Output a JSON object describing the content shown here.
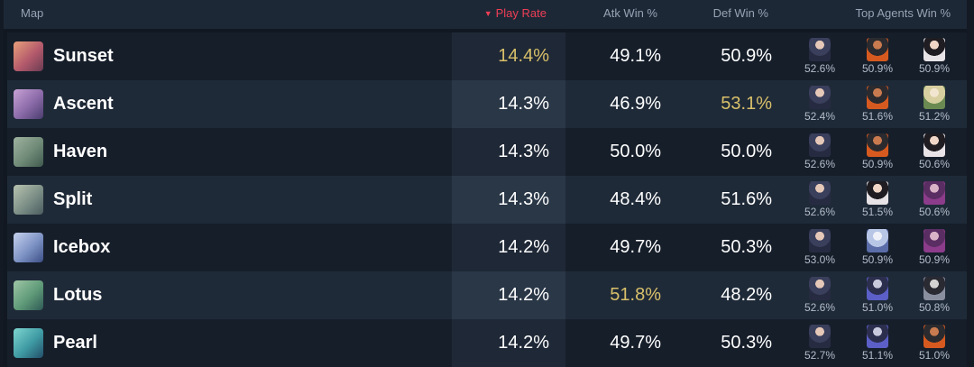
{
  "header": {
    "map_label": "Map",
    "play_rate_label": "Play Rate",
    "sort_arrow": "▼",
    "atk_label": "Atk Win %",
    "def_label": "Def Win %",
    "agents_label": "Top Agents Win %"
  },
  "colors": {
    "highlight": "#d8c06a",
    "sort_accent": "#ef3e56"
  },
  "rows": [
    {
      "map": "Sunset",
      "play_rate": "14.4%",
      "atk": "49.1%",
      "def": "50.9%",
      "highlight": "play_rate",
      "agents": [
        "52.6%",
        "50.9%",
        "50.9%"
      ]
    },
    {
      "map": "Ascent",
      "play_rate": "14.3%",
      "atk": "46.9%",
      "def": "53.1%",
      "highlight": "def",
      "agents": [
        "52.4%",
        "51.6%",
        "51.2%"
      ]
    },
    {
      "map": "Haven",
      "play_rate": "14.3%",
      "atk": "50.0%",
      "def": "50.0%",
      "highlight": "",
      "agents": [
        "52.6%",
        "50.9%",
        "50.6%"
      ]
    },
    {
      "map": "Split",
      "play_rate": "14.3%",
      "atk": "48.4%",
      "def": "51.6%",
      "highlight": "",
      "agents": [
        "52.6%",
        "51.5%",
        "50.6%"
      ]
    },
    {
      "map": "Icebox",
      "play_rate": "14.2%",
      "atk": "49.7%",
      "def": "50.3%",
      "highlight": "",
      "agents": [
        "53.0%",
        "50.9%",
        "50.9%"
      ]
    },
    {
      "map": "Lotus",
      "play_rate": "14.2%",
      "atk": "51.8%",
      "def": "48.2%",
      "highlight": "atk",
      "agents": [
        "52.6%",
        "51.0%",
        "50.8%"
      ]
    },
    {
      "map": "Pearl",
      "play_rate": "14.2%",
      "atk": "49.7%",
      "def": "50.3%",
      "highlight": "",
      "agents": [
        "52.7%",
        "51.1%",
        "51.0%"
      ]
    }
  ]
}
